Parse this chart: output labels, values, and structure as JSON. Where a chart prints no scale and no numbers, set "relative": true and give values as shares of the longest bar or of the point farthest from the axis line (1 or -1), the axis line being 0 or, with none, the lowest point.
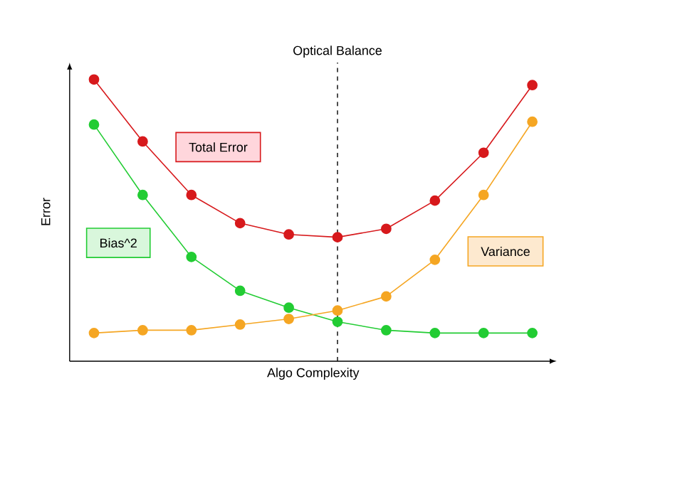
{
  "chart_data": {
    "type": "line",
    "relative": true,
    "xlabel": "Algo Complexity",
    "ylabel": "Error",
    "marker": "circle",
    "line_style": "solid",
    "categories": [
      null,
      null,
      null,
      null,
      null,
      null,
      null,
      null,
      null,
      null
    ],
    "series": [
      {
        "name": "Total Error",
        "color": "#d7191c",
        "values": [
          1,
          0.78,
          0.59,
          0.49,
          0.45,
          0.44,
          0.47,
          0.57,
          0.74,
          0.98
        ]
      },
      {
        "name": "Bias^2",
        "color": "#22cc33",
        "values": [
          0.84,
          0.59,
          0.37,
          0.25,
          0.19,
          0.14,
          0.11,
          0.1,
          0.1,
          0.1
        ]
      },
      {
        "name": "Variance",
        "color": "#f5a623",
        "values": [
          0.1,
          0.11,
          0.11,
          0.13,
          0.15,
          0.18,
          0.23,
          0.36,
          0.59,
          0.85
        ]
      }
    ],
    "annotations": [
      "Optical Balance"
    ]
  }
}
